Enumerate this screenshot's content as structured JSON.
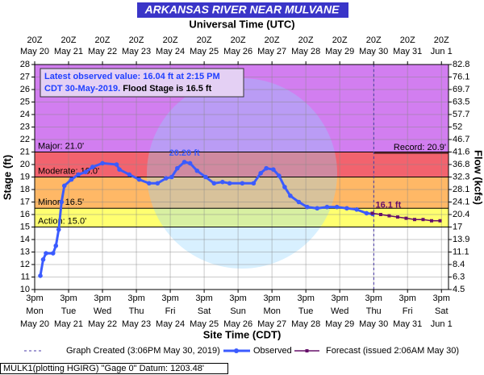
{
  "chart_data": {
    "type": "hydrograph",
    "title": "ARKANSAS RIVER NEAR MULVANE",
    "top_axis_label": "Universal Time (UTC)",
    "xlabel": "Site Time (CDT)",
    "ylabel": "Stage (ft)",
    "y2label": "Flow (kcfs)",
    "xlim": [
      "05-20 15:00",
      "06-01 20:00"
    ],
    "xticks": [
      "05-20 15:00",
      "05-21 15:00",
      "05-22 15:00",
      "05-23 15:00",
      "05-24 15:00",
      "05-25 15:00",
      "05-26 15:00",
      "05-27 15:00",
      "05-28 15:00",
      "05-29 15:00",
      "05-30 15:00",
      "05-31 15:00",
      "06-01 15:00"
    ],
    "xtick_labels": [
      [
        "3pm",
        "Mon",
        "May 20"
      ],
      [
        "3pm",
        "Tue",
        "May 21"
      ],
      [
        "3pm",
        "Wed",
        "May 22"
      ],
      [
        "3pm",
        "Thu",
        "May 23"
      ],
      [
        "3pm",
        "Fri",
        "May 24"
      ],
      [
        "3pm",
        "Sat",
        "May 25"
      ],
      [
        "3pm",
        "Sun",
        "May 26"
      ],
      [
        "3pm",
        "Mon",
        "May 27"
      ],
      [
        "3pm",
        "Tue",
        "May 28"
      ],
      [
        "3pm",
        "Wed",
        "May 29"
      ],
      [
        "3pm",
        "Thu",
        "May 30"
      ],
      [
        "3pm",
        "Fri",
        "May 31"
      ],
      [
        "3pm",
        "Sat",
        "Jun 1"
      ]
    ],
    "x2tick_labels": [
      [
        "20Z",
        "May 20"
      ],
      [
        "20Z",
        "May 21"
      ],
      [
        "20Z",
        "May 22"
      ],
      [
        "20Z",
        "May 23"
      ],
      [
        "20Z",
        "May 24"
      ],
      [
        "20Z",
        "May 25"
      ],
      [
        "20Z",
        "May 26"
      ],
      [
        "20Z",
        "May 27"
      ],
      [
        "20Z",
        "May 28"
      ],
      [
        "20Z",
        "May 29"
      ],
      [
        "20Z",
        "May 30"
      ],
      [
        "20Z",
        "May 31"
      ],
      [
        "20Z",
        "Jun 1"
      ]
    ],
    "ylim": [
      10,
      28
    ],
    "yticks": [
      10,
      11,
      12,
      13,
      14,
      15,
      16,
      17,
      18,
      19,
      20,
      21,
      22,
      23,
      24,
      25,
      26,
      27,
      28
    ],
    "y2ticks": [
      4.5,
      6.3,
      8.4,
      11.1,
      13.9,
      17.0,
      20.4,
      24.1,
      28.1,
      32.3,
      36.8,
      41.6,
      46.7,
      52.0,
      57.7,
      63.5,
      69.7,
      76.1,
      82.8
    ],
    "grid": true,
    "flood_categories": [
      {
        "label": "Major: 21.0'",
        "value": 21,
        "color": "#d27ef0"
      },
      {
        "label": "Moderate: 19.0'",
        "value": 19,
        "color": "#f2636e"
      },
      {
        "label": "Minor: 16.5'",
        "value": 16.5,
        "color": "#ffb866"
      },
      {
        "label": "Action: 15.0'",
        "value": 15,
        "color": "#ffff70"
      }
    ],
    "record": {
      "label": "Record: 20.9'",
      "value": 20.9
    },
    "info_box": [
      "Latest observed value: 16.04 ft at 2:15 PM",
      "CDT 30-May-2019.",
      "Flood Stage is 16.5 ft"
    ],
    "graph_created": {
      "label": "Graph Created (3:06PM May 30, 2019)",
      "x": "05-30 15:06"
    },
    "peak_label": {
      "text": "20.20 ft",
      "x": "05-25 01:00",
      "value": 20.2
    },
    "forecast_label": {
      "text": "16.1 ft",
      "x": "05-30 14:00",
      "value": 16.1
    },
    "series": [
      {
        "name": "Observed",
        "color": "#3b5bff",
        "x": [
          "05-20 19:00",
          "05-20 21:00",
          "05-20 23:00",
          "05-21 04:00",
          "05-21 06:00",
          "05-21 08:00",
          "05-21 10:00",
          "05-21 12:00",
          "05-21 17:00",
          "05-21 22:00",
          "05-22 03:00",
          "05-22 08:00",
          "05-22 15:00",
          "05-23 01:00",
          "05-23 03:00",
          "05-23 10:00",
          "05-23 17:00",
          "05-24 00:00",
          "05-24 06:00",
          "05-24 12:00",
          "05-24 16:00",
          "05-24 20:00",
          "05-25 01:00",
          "05-25 05:00",
          "05-25 10:00",
          "05-25 16:00",
          "05-25 22:00",
          "05-26 04:00",
          "05-26 09:00",
          "05-26 18:00",
          "05-27 02:00",
          "05-27 07:00",
          "05-27 11:00",
          "05-27 16:00",
          "05-27 20:00",
          "05-28 00:00",
          "05-28 04:00",
          "05-28 10:00",
          "05-28 16:00",
          "05-28 23:00",
          "05-29 06:00",
          "05-29 13:00",
          "05-29 20:00",
          "05-30 03:00",
          "05-30 10:00",
          "05-30 14:15"
        ],
        "values": [
          11.1,
          12.4,
          12.9,
          12.9,
          13.5,
          14.8,
          17.0,
          18.3,
          18.8,
          19.2,
          19.4,
          19.8,
          20.1,
          20.0,
          19.6,
          19.2,
          18.8,
          18.5,
          18.5,
          18.9,
          19.0,
          19.7,
          20.2,
          20.1,
          19.5,
          19.0,
          18.5,
          18.6,
          18.5,
          18.5,
          18.5,
          19.3,
          19.7,
          19.6,
          19.1,
          18.2,
          17.5,
          17.0,
          16.6,
          16.5,
          16.6,
          16.6,
          16.5,
          16.4,
          16.1,
          16.04
        ]
      },
      {
        "name": "Forecast (issued 2:06AM May 30)",
        "color": "#66106a",
        "x": [
          "05-30 14:00",
          "05-30 20:00",
          "05-31 02:00",
          "05-31 08:00",
          "05-31 14:00",
          "05-31 20:00",
          "06-01 02:00",
          "06-01 08:00",
          "06-01 14:00"
        ],
        "values": [
          16.1,
          16.0,
          15.9,
          15.8,
          15.7,
          15.6,
          15.6,
          15.5,
          15.5
        ]
      }
    ],
    "footer": "MULK1(plotting HGIRG) \"Gage 0\" Datum: 1203.48'"
  }
}
